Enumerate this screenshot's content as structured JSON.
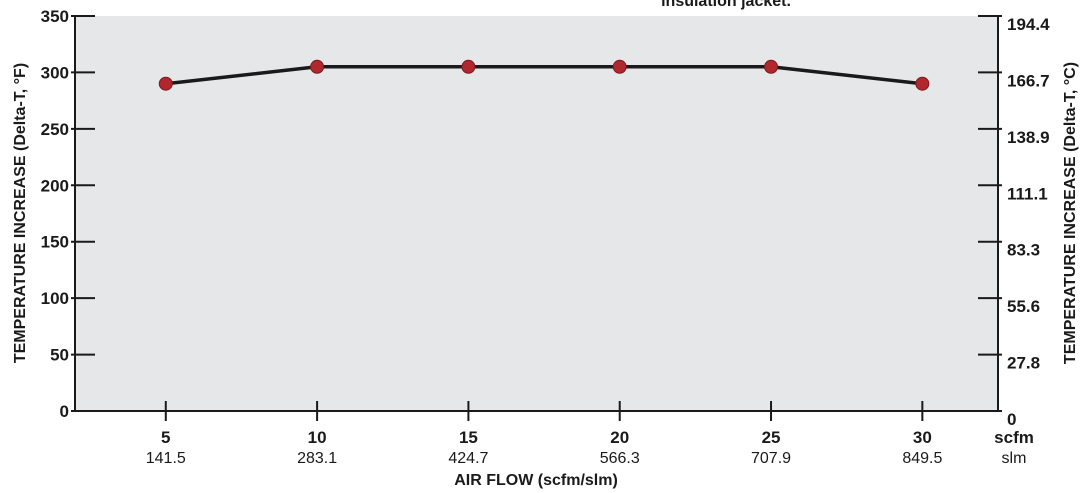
{
  "chart_data": {
    "type": "line",
    "x": [
      5,
      10,
      15,
      20,
      25,
      30
    ],
    "x_secondary": [
      "141.5",
      "283.1",
      "424.7",
      "566.3",
      "707.9",
      "849.5"
    ],
    "x_unit_primary": "scfm",
    "x_unit_secondary": "slm",
    "xlabel": "AIR FLOW  (scfm/slm)",
    "xlim": [
      2,
      32.5
    ],
    "series": [
      {
        "values": [
          290,
          305,
          305,
          305,
          305,
          290
        ]
      }
    ],
    "ylim": [
      0,
      350
    ],
    "yticks": [
      "0",
      "50",
      "100",
      "150",
      "200",
      "250",
      "300",
      "350"
    ],
    "ylabel": "TEMPERATURE INCREASE  (Delta-T, °F)",
    "y2ticks": [
      "0",
      "27.8",
      "55.6",
      "83.3",
      "111.1",
      "138.9",
      "166.7",
      "194.4"
    ],
    "y2label": "TEMPERATURE INCREASE  (Delta-T, °C)",
    "annotation": "insulation jacket.",
    "grid": false,
    "colors": {
      "plot_bg": "#e6e7e9",
      "line": "#1a1a1a",
      "marker": "#b0272e",
      "axis": "#1a1a1a"
    }
  }
}
